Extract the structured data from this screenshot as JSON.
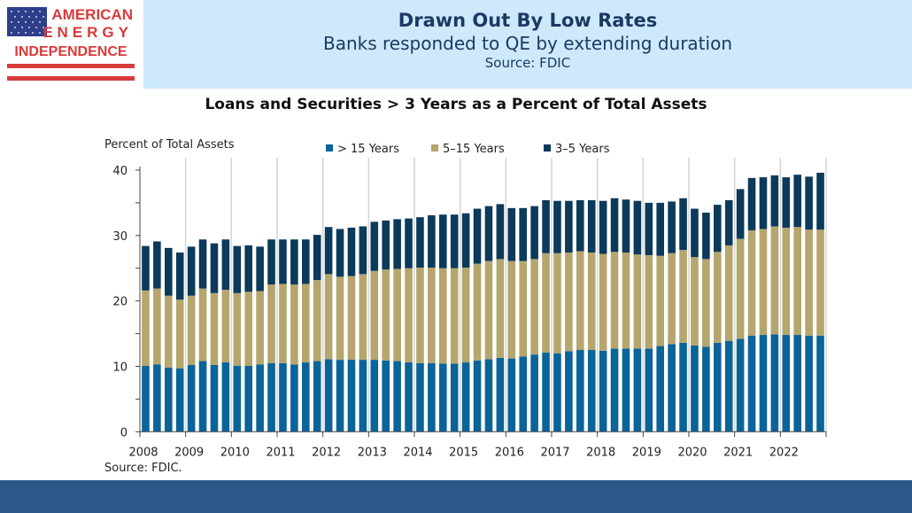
{
  "logo": {
    "text": "AMERICAN ENERGY INDEPENDENCE",
    "colors": {
      "red": "#d93a3a",
      "blue": "#2d3f8a"
    }
  },
  "header": {
    "title": "Drawn Out By Low Rates",
    "subtitle": "Banks responded to QE by extending duration",
    "source": "Source: FDIC"
  },
  "chart_data": {
    "type": "bar",
    "stacked": true,
    "title": "Loans and Securities > 3 Years as a Percent of Total Assets",
    "ylabel": "Percent of Total Assets",
    "xlabel": "",
    "source_note": "Source: FDIC.",
    "ylim": [
      0,
      40
    ],
    "yticks": [
      "0",
      "10",
      "20",
      "30",
      "40"
    ],
    "xtick_labels": [
      "2008",
      "2009",
      "2010",
      "2011",
      "2012",
      "2013",
      "2014",
      "2015",
      "2016",
      "2017",
      "2018",
      "2019",
      "2020",
      "2021",
      "2022"
    ],
    "frequency": "quarterly",
    "grid": "vertical year lines",
    "legend_position": "top",
    "series": [
      {
        "name": "> 15 Years",
        "color": "#0a6399",
        "values": [
          10.1,
          10.3,
          9.8,
          9.7,
          10.2,
          10.8,
          10.2,
          10.6,
          10.1,
          10.1,
          10.3,
          10.5,
          10.5,
          10.3,
          10.6,
          10.8,
          11.1,
          11.0,
          11.0,
          11.0,
          11.0,
          10.9,
          10.8,
          10.6,
          10.5,
          10.5,
          10.4,
          10.4,
          10.6,
          10.9,
          11.1,
          11.3,
          11.2,
          11.5,
          11.8,
          12.1,
          12.0,
          12.3,
          12.5,
          12.5,
          12.4,
          12.7,
          12.7,
          12.7,
          12.7,
          13.1,
          13.4,
          13.6,
          13.2,
          13.0,
          13.6,
          13.9,
          14.2,
          14.7,
          14.8,
          14.9,
          14.8,
          14.8,
          14.7,
          14.7
        ]
      },
      {
        "name": "5–15 Years",
        "color": "#b5a66d",
        "values": [
          11.5,
          11.6,
          11.0,
          10.5,
          10.6,
          11.1,
          11.0,
          11.1,
          11.1,
          11.3,
          11.2,
          12.0,
          12.1,
          12.2,
          12.0,
          12.4,
          13.0,
          12.7,
          12.8,
          13.1,
          13.6,
          13.9,
          14.1,
          14.4,
          14.6,
          14.6,
          14.6,
          14.6,
          14.5,
          14.8,
          15.0,
          15.1,
          14.9,
          14.6,
          14.6,
          15.2,
          15.3,
          15.1,
          15.1,
          14.9,
          14.8,
          14.8,
          14.7,
          14.4,
          14.3,
          13.8,
          13.9,
          14.2,
          13.5,
          13.4,
          13.9,
          14.6,
          15.3,
          16.1,
          16.2,
          16.5,
          16.4,
          16.5,
          16.2,
          16.2
        ]
      },
      {
        "name": "3–5 Years",
        "color": "#0b3a5a",
        "values": [
          6.8,
          7.2,
          7.3,
          7.2,
          7.5,
          7.5,
          7.6,
          7.7,
          7.2,
          7.1,
          6.8,
          6.9,
          6.8,
          6.9,
          6.8,
          6.9,
          7.2,
          7.3,
          7.4,
          7.3,
          7.5,
          7.5,
          7.6,
          7.6,
          7.7,
          8.0,
          8.2,
          8.2,
          8.3,
          8.4,
          8.4,
          8.4,
          8.1,
          8.1,
          8.1,
          8.1,
          8.0,
          7.9,
          7.8,
          8.0,
          8.1,
          8.2,
          8.1,
          8.2,
          8.0,
          8.1,
          7.9,
          7.9,
          7.4,
          7.1,
          7.2,
          6.9,
          7.6,
          8.0,
          7.9,
          7.8,
          7.7,
          8.0,
          8.1,
          8.7
        ]
      }
    ]
  }
}
